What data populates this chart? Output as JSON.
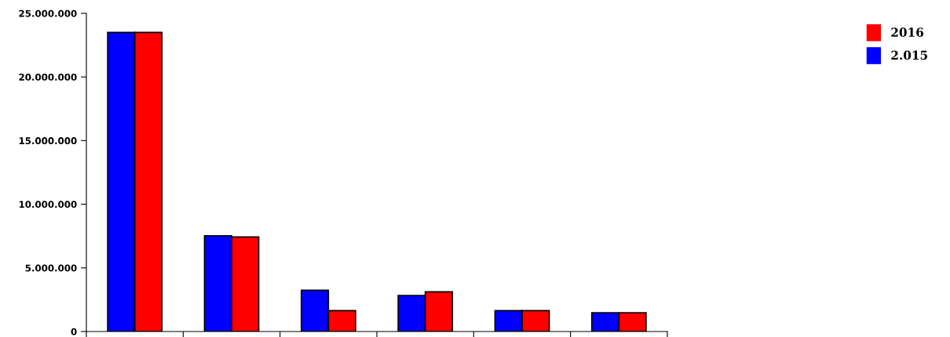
{
  "chart_data": {
    "type": "bar",
    "categories": [
      null,
      null,
      null,
      null,
      null,
      null
    ],
    "series": [
      {
        "name": "2.015",
        "color": "#0000ff",
        "values": [
          23500000,
          7530000,
          3240000,
          2830000,
          1640000,
          1480000
        ]
      },
      {
        "name": "2016",
        "color": "#ff0000",
        "values": [
          23500000,
          7430000,
          1640000,
          3120000,
          1640000,
          1480000
        ]
      }
    ],
    "ylim": [
      0,
      25000000
    ],
    "yticks": [
      {
        "value": 0,
        "label": "0"
      },
      {
        "value": 5000000,
        "label": "5.000.000"
      },
      {
        "value": 10000000,
        "label": "10.000.000"
      },
      {
        "value": 15000000,
        "label": "15.000.000"
      },
      {
        "value": 20000000,
        "label": "20.000.000"
      },
      {
        "value": 25000000,
        "label": "25.000.000"
      }
    ],
    "grid": false,
    "legend": "top right"
  }
}
